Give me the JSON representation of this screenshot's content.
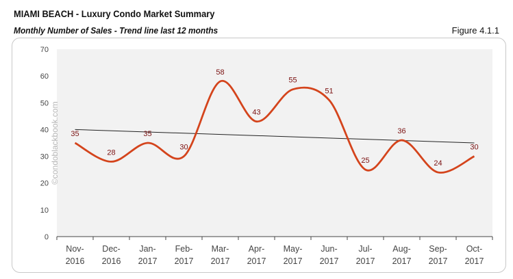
{
  "header": {
    "title": "MIAMI BEACH - Luxury Condo Market Summary",
    "subtitle": "Monthly Number of Sales - Trend line last 12 months",
    "figure": "Figure 4.1.1"
  },
  "watermark": "©condoblackbook.com",
  "chart_data": {
    "type": "line",
    "categories": [
      [
        "Nov-",
        "2016"
      ],
      [
        "Dec-",
        "2016"
      ],
      [
        "Jan-",
        "2017"
      ],
      [
        "Feb-",
        "2017"
      ],
      [
        "Mar-",
        "2017"
      ],
      [
        "Apr-",
        "2017"
      ],
      [
        "May-",
        "2017"
      ],
      [
        "Jun-",
        "2017"
      ],
      [
        "Jul-",
        "2017"
      ],
      [
        "Aug-",
        "2017"
      ],
      [
        "Sep-",
        "2017"
      ],
      [
        "Oct-",
        "2017"
      ]
    ],
    "values": [
      35,
      28,
      35,
      30,
      58,
      43,
      55,
      51,
      25,
      36,
      24,
      30
    ],
    "trendline": {
      "start": 40,
      "end": 35
    },
    "ylim": [
      0,
      70
    ],
    "yticks": [
      0,
      10,
      20,
      30,
      40,
      50,
      60,
      70
    ],
    "smooth": true,
    "grid": false,
    "colors": {
      "line": "#d4441c",
      "labels": "#7a1010",
      "trend": "#222222",
      "plot_bg": "#f2f2f2"
    }
  }
}
